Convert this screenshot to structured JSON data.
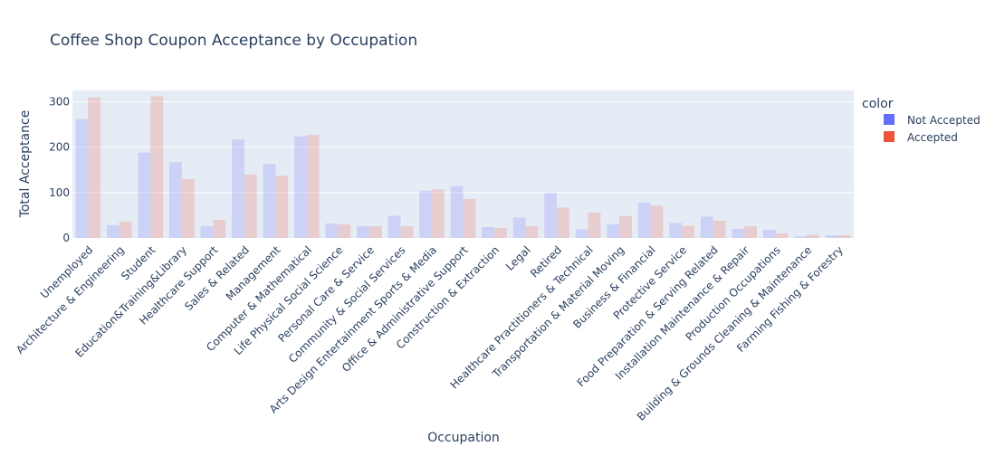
{
  "chart_data": {
    "type": "bar",
    "title": "Coffee Shop Coupon Acceptance by Occupation",
    "xlabel": "Occupation",
    "ylabel": "Total Acceptance",
    "ylim": [
      0,
      325
    ],
    "yticks": [
      0,
      100,
      200,
      300
    ],
    "grid": true,
    "legend": {
      "title": "color",
      "placement": "top-right"
    },
    "categories": [
      "Unemployed",
      "Architecture & Engineering",
      "Student",
      "Education&Training&Library",
      "Healthcare Support",
      "Sales & Related",
      "Management",
      "Computer & Mathematical",
      "Life Physical Social Science",
      "Personal Care & Service",
      "Community & Social Services",
      "Arts Design Entertainment Sports & Media",
      "Office & Administrative Support",
      "Construction & Extraction",
      "Legal",
      "Retired",
      "Healthcare Practitioners & Technical",
      "Transportation & Material Moving",
      "Business & Financial",
      "Protective Service",
      "Food Preparation & Serving Related",
      "Installation Maintenance & Repair",
      "Production Occupations",
      "Building & Grounds Cleaning & Maintenance",
      "Farming Fishing & Forestry"
    ],
    "series": [
      {
        "name": "Not Accepted",
        "color": "#636efa",
        "values": [
          262,
          28,
          188,
          167,
          26,
          217,
          163,
          224,
          32,
          26,
          49,
          104,
          114,
          24,
          45,
          99,
          19,
          30,
          78,
          33,
          47,
          20,
          18,
          3,
          6
        ]
      },
      {
        "name": "Accepted",
        "color": "#ef553b",
        "values": [
          310,
          36,
          312,
          130,
          40,
          140,
          137,
          227,
          30,
          26,
          26,
          107,
          86,
          22,
          26,
          67,
          56,
          48,
          71,
          27,
          38,
          26,
          10,
          7,
          6
        ]
      }
    ]
  }
}
